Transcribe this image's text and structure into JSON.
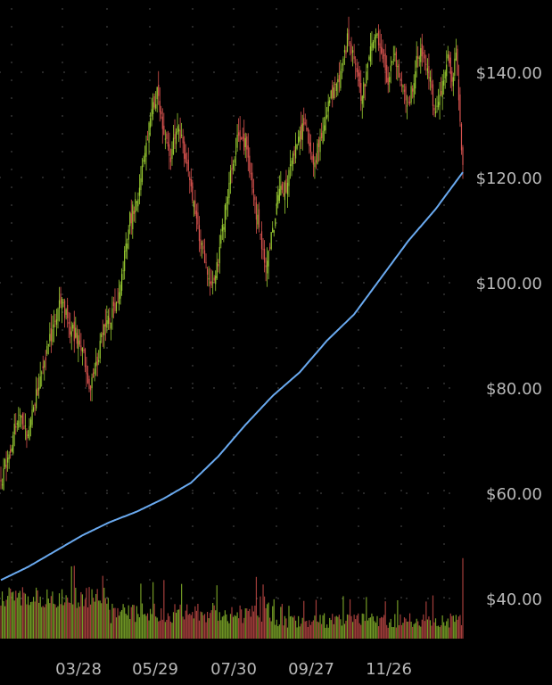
{
  "chart_data": {
    "type": "candlestick",
    "title": "",
    "xlabel": "",
    "ylabel": "",
    "ylim": [
      30,
      152
    ],
    "y_ticks": [
      140,
      120,
      100,
      80,
      60,
      40
    ],
    "y_tick_labels": [
      "$140.00",
      "$120.00",
      "$100.00",
      "$80.00",
      "$60.00",
      "$40.00"
    ],
    "x_ticks": [
      "03/28",
      "05/29",
      "07/30",
      "09/27",
      "11/26"
    ],
    "grid": "dotted",
    "colors": {
      "background": "#000000",
      "up": "#9acd32",
      "down": "#d9534f",
      "moving_average": "#6aaaf0",
      "grid": "#444444",
      "tick_text": "#b8b8b8"
    },
    "price_path": [
      [
        0,
        62
      ],
      [
        5,
        67
      ],
      [
        10,
        72
      ],
      [
        15,
        74
      ],
      [
        20,
        71
      ],
      [
        25,
        78
      ],
      [
        30,
        82
      ],
      [
        35,
        88
      ],
      [
        40,
        94
      ],
      [
        45,
        96
      ],
      [
        50,
        92
      ],
      [
        55,
        90
      ],
      [
        60,
        87
      ],
      [
        65,
        80
      ],
      [
        70,
        84
      ],
      [
        75,
        90
      ],
      [
        80,
        93
      ],
      [
        85,
        96
      ],
      [
        90,
        103
      ],
      [
        95,
        112
      ],
      [
        100,
        116
      ],
      [
        105,
        122
      ],
      [
        110,
        131
      ],
      [
        115,
        136
      ],
      [
        120,
        128
      ],
      [
        125,
        124
      ],
      [
        130,
        130
      ],
      [
        135,
        125
      ],
      [
        140,
        118
      ],
      [
        145,
        110
      ],
      [
        150,
        104
      ],
      [
        155,
        98
      ],
      [
        160,
        104
      ],
      [
        165,
        114
      ],
      [
        170,
        122
      ],
      [
        175,
        128
      ],
      [
        180,
        126
      ],
      [
        185,
        118
      ],
      [
        190,
        110
      ],
      [
        195,
        104
      ],
      [
        200,
        110
      ],
      [
        205,
        117
      ],
      [
        210,
        118
      ],
      [
        215,
        124
      ],
      [
        220,
        128
      ],
      [
        225,
        130
      ],
      [
        230,
        122
      ],
      [
        235,
        127
      ],
      [
        240,
        133
      ],
      [
        245,
        137
      ],
      [
        250,
        140
      ],
      [
        255,
        146
      ],
      [
        260,
        143
      ],
      [
        265,
        135
      ],
      [
        270,
        141
      ],
      [
        275,
        148
      ],
      [
        280,
        145
      ],
      [
        285,
        138
      ],
      [
        290,
        143
      ],
      [
        295,
        137
      ],
      [
        300,
        133
      ],
      [
        305,
        141
      ],
      [
        310,
        144
      ],
      [
        315,
        139
      ],
      [
        320,
        132
      ],
      [
        325,
        138
      ],
      [
        329,
        142
      ],
      [
        332,
        138
      ],
      [
        335,
        145
      ],
      [
        340,
        121
      ]
    ],
    "moving_average": [
      [
        0,
        43.5
      ],
      [
        20,
        46
      ],
      [
        40,
        49
      ],
      [
        60,
        52
      ],
      [
        80,
        54.5
      ],
      [
        100,
        56.5
      ],
      [
        120,
        59
      ],
      [
        140,
        62
      ],
      [
        160,
        67
      ],
      [
        180,
        73
      ],
      [
        200,
        78.5
      ],
      [
        220,
        83
      ],
      [
        240,
        89
      ],
      [
        260,
        94
      ],
      [
        280,
        101
      ],
      [
        300,
        108
      ],
      [
        320,
        114
      ],
      [
        340,
        121
      ]
    ],
    "volume_scale_note": "",
    "bar_count": 341
  }
}
